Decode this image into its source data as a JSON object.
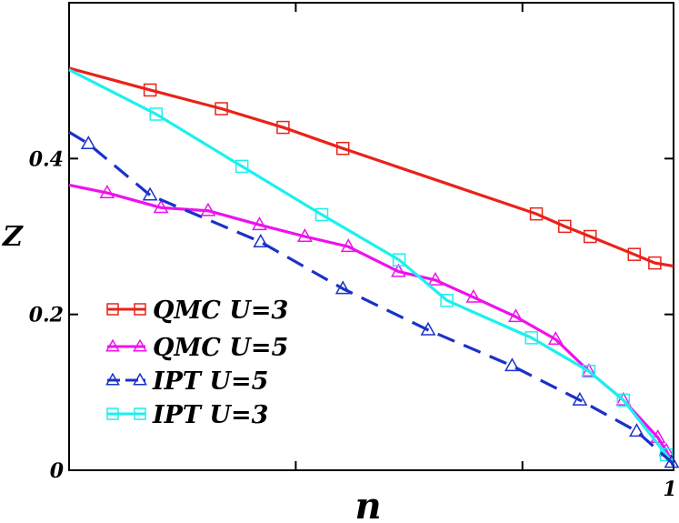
{
  "chart_data": {
    "type": "line",
    "xlabel": "n",
    "ylabel": "Z",
    "xlim": [
      0.0,
      1.0
    ],
    "ylim": [
      0.0,
      0.6
    ],
    "x_ticks": [
      0.0,
      0.375,
      0.75,
      1.0
    ],
    "x_tick_labels": [
      "",
      "",
      "",
      "1"
    ],
    "y_ticks": [
      0.0,
      0.2,
      0.4
    ],
    "y_tick_labels": [
      "0",
      "0.2",
      "0.4"
    ],
    "grid": false,
    "legend_position": "bottom-left",
    "series": [
      {
        "name": "QMC U=3",
        "color": "#e8231a",
        "marker": "square",
        "dashed": false,
        "line_x": [
          0.0,
          0.134,
          0.252,
          0.354,
          0.453,
          0.773,
          0.82,
          0.862,
          0.935,
          0.969,
          1.0
        ],
        "line_y": [
          0.516,
          0.488,
          0.464,
          0.44,
          0.413,
          0.329,
          0.313,
          0.3,
          0.277,
          0.266,
          0.262
        ],
        "marker_x": [
          0.134,
          0.252,
          0.354,
          0.453,
          0.773,
          0.82,
          0.862,
          0.935,
          0.969
        ],
        "marker_y": [
          0.488,
          0.464,
          0.44,
          0.413,
          0.329,
          0.313,
          0.3,
          0.277,
          0.266
        ]
      },
      {
        "name": "QMC U=5",
        "color": "#ee11ee",
        "marker": "triangle",
        "dashed": false,
        "line_x": [
          0.0,
          0.063,
          0.152,
          0.23,
          0.315,
          0.39,
          0.462,
          0.545,
          0.606,
          0.669,
          0.739,
          0.805,
          0.86,
          0.917,
          0.974,
          0.988,
          1.0
        ],
        "line_y": [
          0.366,
          0.356,
          0.337,
          0.333,
          0.315,
          0.3,
          0.287,
          0.255,
          0.244,
          0.222,
          0.197,
          0.168,
          0.127,
          0.09,
          0.042,
          0.025,
          0.007
        ],
        "marker_x": [
          0.063,
          0.152,
          0.23,
          0.315,
          0.39,
          0.462,
          0.545,
          0.606,
          0.669,
          0.739,
          0.805,
          0.86,
          0.917,
          0.974,
          0.988
        ],
        "marker_y": [
          0.356,
          0.337,
          0.333,
          0.315,
          0.3,
          0.287,
          0.255,
          0.244,
          0.222,
          0.197,
          0.168,
          0.127,
          0.09,
          0.042,
          0.025
        ]
      },
      {
        "name": "IPT U=5",
        "color": "#1a32c8",
        "marker": "triangle",
        "dashed": true,
        "line_x": [
          0.0,
          0.032,
          0.134,
          0.317,
          0.453,
          0.594,
          0.733,
          0.845,
          0.939,
          0.997,
          1.0
        ],
        "line_y": [
          0.434,
          0.419,
          0.353,
          0.293,
          0.233,
          0.18,
          0.134,
          0.09,
          0.05,
          0.01,
          0.005
        ],
        "marker_x": [
          0.032,
          0.134,
          0.317,
          0.453,
          0.594,
          0.733,
          0.845,
          0.939,
          0.997
        ],
        "marker_y": [
          0.419,
          0.353,
          0.293,
          0.233,
          0.18,
          0.134,
          0.09,
          0.05,
          0.01
        ]
      },
      {
        "name": "IPT U=3",
        "color": "#1cf0ee",
        "marker": "square",
        "dashed": false,
        "line_x": [
          0.0,
          0.144,
          0.286,
          0.418,
          0.546,
          0.625,
          0.765,
          0.86,
          0.917,
          0.988,
          1.0
        ],
        "line_y": [
          0.514,
          0.457,
          0.39,
          0.328,
          0.27,
          0.218,
          0.17,
          0.127,
          0.09,
          0.02,
          0.007
        ],
        "marker_x": [
          0.144,
          0.286,
          0.418,
          0.546,
          0.625,
          0.765,
          0.86,
          0.917,
          0.988
        ],
        "marker_y": [
          0.457,
          0.39,
          0.328,
          0.27,
          0.218,
          0.17,
          0.127,
          0.09,
          0.02
        ]
      }
    ]
  }
}
